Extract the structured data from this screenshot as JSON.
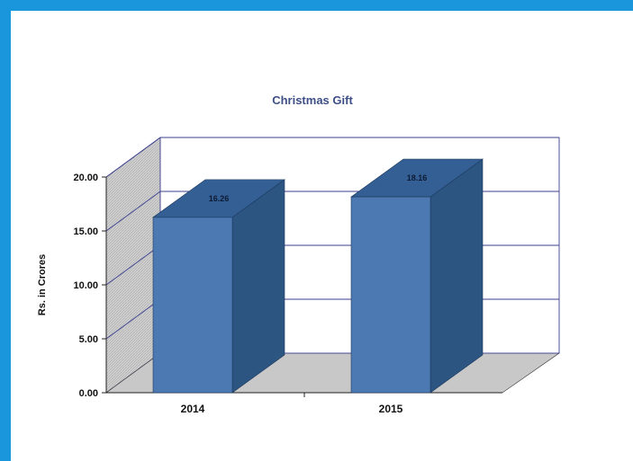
{
  "chart_data": {
    "type": "bar",
    "title": "Christmas Gift",
    "ylabel": "Rs. in Crores",
    "xlabel": "",
    "categories": [
      "2014",
      "2015"
    ],
    "values": [
      16.26,
      18.16
    ],
    "data_labels": [
      "16.26",
      "18.16"
    ],
    "y_ticks": [
      "0.00",
      "5.00",
      "10.00",
      "15.00",
      "20.00"
    ],
    "ylim": [
      0,
      20
    ],
    "grid": true,
    "legend": "none",
    "style": "3d-column"
  },
  "colors": {
    "border": "#1a97dc",
    "bar_front": "#4c79b2",
    "bar_side": "#2c5582",
    "bar_top": "#345f95",
    "grid": "#3b3f8f",
    "wall": "#c9c9c9",
    "floor": "#c8c8c8"
  }
}
